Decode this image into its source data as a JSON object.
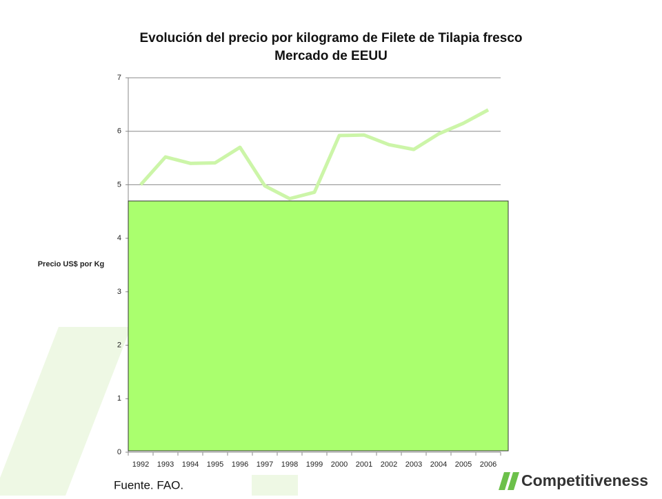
{
  "chart_data": {
    "type": "line",
    "title": "Evolución del precio por kilogramo de Filete de Tilapia fresco",
    "subtitle": "Mercado de EEUU",
    "y_label": "Precio US$ por Kg",
    "categories": [
      "1992",
      "1993",
      "1994",
      "1995",
      "1996",
      "1997",
      "1998",
      "1999",
      "2000",
      "2001",
      "2002",
      "2003",
      "2004",
      "2005",
      "2006"
    ],
    "series": [
      {
        "name": "Precio",
        "color": "#ccf5a8",
        "values": [
          5.0,
          5.52,
          5.4,
          5.41,
          5.7,
          4.98,
          4.74,
          4.86,
          5.92,
          5.93,
          5.75,
          5.66,
          5.95,
          6.15,
          6.4
        ]
      }
    ],
    "ylim": [
      0,
      7
    ],
    "yticks": [
      0,
      1,
      2,
      3,
      4,
      5,
      6,
      7
    ],
    "grid": true
  },
  "source": "Fuente. FAO.",
  "logo": "Competitiveness"
}
